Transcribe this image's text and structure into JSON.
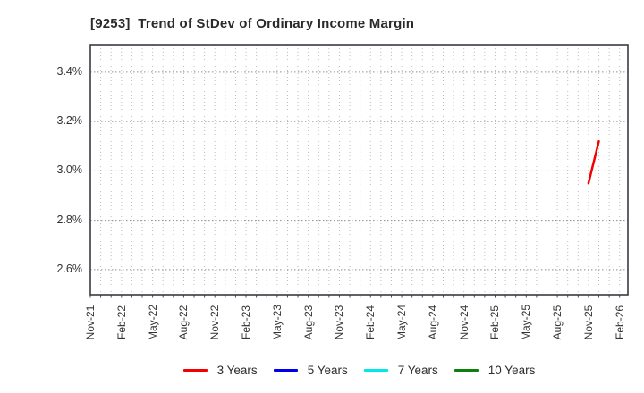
{
  "header": {
    "title": "[9253]  Trend of StDev of Ordinary Income Margin"
  },
  "chart_data": {
    "type": "line",
    "title": "[9253]  Trend of StDev of Ordinary Income Margin",
    "xlabel": "",
    "ylabel": "",
    "grid": "dotted",
    "legend_position": "bottom-center",
    "y_axis": {
      "unit": "%",
      "range_percent": [
        2.5,
        3.51
      ],
      "ticks": [
        {
          "label": "3.4%",
          "value": 3.4
        },
        {
          "label": "3.2%",
          "value": 3.2
        },
        {
          "label": "3.0%",
          "value": 3.0
        },
        {
          "label": "2.8%",
          "value": 2.8
        },
        {
          "label": "2.6%",
          "value": 2.6
        }
      ]
    },
    "x_axis": {
      "start": "Nov-21",
      "end": "Feb-26",
      "tick_interval_months": 3,
      "tick_labels": [
        "Nov-21",
        "Feb-22",
        "May-22",
        "Aug-22",
        "Nov-22",
        "Feb-23",
        "May-23",
        "Aug-23",
        "Nov-23",
        "Feb-24",
        "May-24",
        "Aug-24",
        "Nov-24",
        "Feb-25",
        "May-25",
        "Aug-25",
        "Nov-25",
        "Feb-26"
      ]
    },
    "series": [
      {
        "name": "3 Years",
        "color": "#f40000",
        "points": [
          {
            "date": "Nov-25",
            "month_index": 48,
            "value_percent": 2.95
          },
          {
            "date": "Dec-25",
            "month_index": 49,
            "value_percent": 3.12
          }
        ]
      },
      {
        "name": "5 Years",
        "color": "#0000f0",
        "points": []
      },
      {
        "name": "7 Years",
        "color": "#00e8e8",
        "points": []
      },
      {
        "name": "10 Years",
        "color": "#0c800c",
        "points": []
      }
    ],
    "legend": {
      "items": [
        {
          "label": "3 Years",
          "color": "#f40000"
        },
        {
          "label": "5 Years",
          "color": "#0000f0"
        },
        {
          "label": "7 Years",
          "color": "#00e8e8"
        },
        {
          "label": "10 Years",
          "color": "#0c800c"
        }
      ]
    }
  }
}
